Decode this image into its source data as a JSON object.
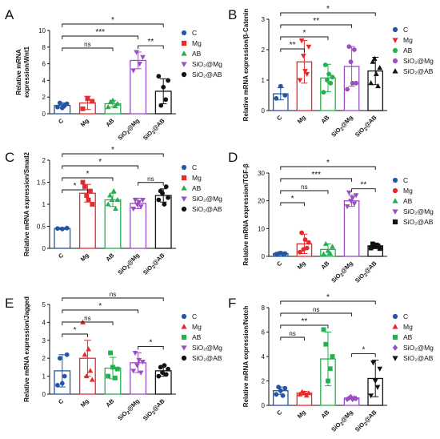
{
  "colors": {
    "C": "#2456a4",
    "Mg": "#e8282b",
    "AB": "#22b14c",
    "SiO2Mg": "#9b4fc0",
    "SiO2AB": "#111111",
    "text": "#111111"
  },
  "chart_data": [
    {
      "panel": "A",
      "type": "bar",
      "categories": [
        "C",
        "Mg",
        "AB",
        "SiO2@Mg",
        "SiO2@AB"
      ],
      "ylabel_lines": [
        "Relative mRNA",
        "expression/Wnt1"
      ],
      "ylim": [
        0,
        10
      ],
      "yticks": [
        0,
        2,
        4,
        6,
        8,
        10
      ],
      "values": [
        1.0,
        1.3,
        1.2,
        6.4,
        2.7
      ],
      "errors": [
        0.3,
        0.8,
        0.4,
        1.0,
        1.5
      ],
      "points": [
        [
          0.8,
          1.3,
          0.7,
          1.0,
          1.2
        ],
        [
          0.6,
          1.8,
          1.5
        ],
        [
          0.8,
          1.4,
          1.6,
          0.9,
          1.2
        ],
        [
          5.2,
          7.4,
          6.0,
          6.8
        ],
        [
          4.5,
          1.0,
          3.2,
          1.7,
          4.0
        ]
      ],
      "markers": [
        "circle",
        "square",
        "triangle",
        "tri-down",
        "circle"
      ],
      "legend": [
        {
          "key": "C",
          "label": "C",
          "marker": "circle"
        },
        {
          "key": "Mg",
          "label": "Mg",
          "marker": "square"
        },
        {
          "key": "AB",
          "label": "AB",
          "marker": "triangle"
        },
        {
          "key": "SiO2Mg",
          "label": "SiO₂@Mg",
          "marker": "tri-down"
        },
        {
          "key": "SiO2AB",
          "label": "SiO₂@AB",
          "marker": "circle"
        }
      ],
      "significance": [
        {
          "from": 0,
          "to": 4,
          "label": "*"
        },
        {
          "from": 0,
          "to": 3,
          "label": "***"
        },
        {
          "from": 0,
          "to": 2,
          "label": "ns"
        },
        {
          "from": 3,
          "to": 4,
          "label": "**"
        }
      ]
    },
    {
      "panel": "B",
      "type": "bar",
      "categories": [
        "C",
        "Mg",
        "AB",
        "SiO2@Mg",
        "SiO2@AB"
      ],
      "ylabel_lines": [
        "Relative mRNA expression/β-Catenin"
      ],
      "ylim": [
        0,
        3
      ],
      "yticks": [
        0,
        1,
        2,
        3
      ],
      "values": [
        0.55,
        1.6,
        1.07,
        1.45,
        1.3
      ],
      "errors": [
        0.2,
        0.7,
        0.45,
        0.65,
        0.45
      ],
      "points": [
        [
          0.4,
          0.8,
          0.5
        ],
        [
          1.0,
          2.3,
          1.8,
          1.3,
          1.2,
          2.1
        ],
        [
          0.6,
          1.5,
          1.0,
          1.2,
          0.9,
          1.1
        ],
        [
          0.7,
          2.1,
          1.6,
          0.9,
          2.0,
          0.9
        ],
        [
          0.9,
          1.6,
          1.7,
          1.2,
          0.8,
          1.4
        ]
      ],
      "markers": [
        "circle",
        "tri-down",
        "circle",
        "circle",
        "triangle"
      ],
      "legend": [
        {
          "key": "C",
          "label": "C",
          "marker": "circle"
        },
        {
          "key": "Mg",
          "label": "Mg",
          "marker": "tri-down"
        },
        {
          "key": "AB",
          "label": "AB",
          "marker": "circle"
        },
        {
          "key": "SiO2Mg",
          "label": "SiO₂@Mg",
          "marker": "circle"
        },
        {
          "key": "SiO2AB",
          "label": "SiO₂@AB",
          "marker": "triangle"
        }
      ],
      "significance": [
        {
          "from": 0,
          "to": 4,
          "label": "*"
        },
        {
          "from": 0,
          "to": 3,
          "label": "**"
        },
        {
          "from": 0,
          "to": 2,
          "label": "*"
        },
        {
          "from": 0,
          "to": 1,
          "label": "**"
        }
      ]
    },
    {
      "panel": "C",
      "type": "bar",
      "categories": [
        "C",
        "Mg",
        "AB",
        "SiO2@Mg",
        "SiO2@AB"
      ],
      "ylabel_lines": [
        "Relative mRNA expression/Smad2"
      ],
      "ylim": [
        0,
        2.0
      ],
      "yticks": [
        0,
        0.5,
        1.0,
        1.5,
        2.0
      ],
      "values": [
        0.45,
        1.25,
        1.1,
        1.02,
        1.2
      ],
      "errors": [
        0.02,
        0.2,
        0.15,
        0.12,
        0.15
      ],
      "points": [
        [
          0.45,
          0.44,
          0.46
        ],
        [
          1.5,
          1.4,
          1.2,
          1.1,
          1.3,
          1.0
        ],
        [
          1.0,
          1.2,
          1.1,
          1.3,
          0.9,
          1.1
        ],
        [
          0.9,
          1.1,
          1.0,
          1.05,
          0.95,
          1.1
        ],
        [
          1.1,
          1.3,
          1.25,
          1.0,
          1.4,
          1.15
        ]
      ],
      "markers": [
        "circle",
        "square",
        "triangle",
        "tri-down",
        "circle"
      ],
      "legend": [
        {
          "key": "C",
          "label": "C",
          "marker": "circle"
        },
        {
          "key": "Mg",
          "label": "Mg",
          "marker": "square"
        },
        {
          "key": "AB",
          "label": "AB",
          "marker": "triangle"
        },
        {
          "key": "SiO2Mg",
          "label": "SiO₂@Mg",
          "marker": "tri-down"
        },
        {
          "key": "SiO2AB",
          "label": "SiO₂@AB",
          "marker": "circle"
        }
      ],
      "significance": [
        {
          "from": 0,
          "to": 4,
          "label": "*"
        },
        {
          "from": 0,
          "to": 3,
          "label": "*"
        },
        {
          "from": 0,
          "to": 2,
          "label": "*"
        },
        {
          "from": 0,
          "to": 1,
          "label": "*"
        },
        {
          "from": 3,
          "to": 4,
          "label": "ns"
        }
      ]
    },
    {
      "panel": "D",
      "type": "bar",
      "categories": [
        "C",
        "Mg",
        "AB",
        "SiO2@Mg",
        "SiO2@AB"
      ],
      "ylabel_lines": [
        "Relative mRNA expression/TGF-β"
      ],
      "ylim": [
        0,
        30
      ],
      "yticks": [
        0,
        10,
        20,
        30
      ],
      "values": [
        1.0,
        4.5,
        2.5,
        20.0,
        3.8
      ],
      "errors": [
        0.4,
        3.5,
        2.0,
        2.0,
        1.0
      ],
      "points": [
        [
          0.8,
          1.0,
          1.2,
          0.9,
          1.0
        ],
        [
          1.5,
          8.5,
          2.5,
          6.0,
          3.0,
          5.0
        ],
        [
          0.8,
          4.5,
          2.0,
          1.0,
          3.5
        ],
        [
          18,
          23,
          20,
          21,
          19,
          22
        ],
        [
          3.0,
          4.5,
          3.5,
          4.0,
          3.8,
          2.8
        ]
      ],
      "markers": [
        "circle",
        "circle",
        "triangle",
        "tri-down",
        "square"
      ],
      "legend": [
        {
          "key": "C",
          "label": "C",
          "marker": "circle"
        },
        {
          "key": "Mg",
          "label": "Mg",
          "marker": "circle"
        },
        {
          "key": "AB",
          "label": "AB",
          "marker": "triangle"
        },
        {
          "key": "SiO2Mg",
          "label": "SiO₂@Mg",
          "marker": "tri-down"
        },
        {
          "key": "SiO2AB",
          "label": "SiO₂@AB",
          "marker": "square"
        }
      ],
      "significance": [
        {
          "from": 0,
          "to": 4,
          "label": "*"
        },
        {
          "from": 0,
          "to": 3,
          "label": "***"
        },
        {
          "from": 0,
          "to": 2,
          "label": "ns"
        },
        {
          "from": 0,
          "to": 1,
          "label": "*"
        },
        {
          "from": 3,
          "to": 4,
          "label": "**"
        }
      ]
    },
    {
      "panel": "E",
      "type": "bar",
      "categories": [
        "C",
        "Mg",
        "AB",
        "SiO2@Mg",
        "SiO2@AB"
      ],
      "ylabel_lines": [
        "Relative mRNA expression/Jagged"
      ],
      "ylim": [
        0,
        5
      ],
      "yticks": [
        0,
        1,
        2,
        3,
        4,
        5
      ],
      "values": [
        1.3,
        2.0,
        1.45,
        1.75,
        1.3
      ],
      "errors": [
        0.9,
        1.0,
        0.6,
        0.55,
        0.3
      ],
      "points": [
        [
          0.5,
          2.0,
          0.6,
          1.0,
          2.2
        ],
        [
          4.0,
          2.2,
          1.0,
          2.5,
          1.3,
          0.8
        ],
        [
          1.0,
          2.3,
          1.5,
          0.9,
          1.4
        ],
        [
          1.3,
          2.3,
          1.6,
          1.9,
          1.2,
          1.8
        ],
        [
          1.0,
          1.5,
          1.2,
          1.6,
          1.1,
          1.4
        ]
      ],
      "markers": [
        "circle",
        "triangle",
        "square",
        "tri-down",
        "circle"
      ],
      "legend": [
        {
          "key": "C",
          "label": "C",
          "marker": "circle"
        },
        {
          "key": "Mg",
          "label": "Mg",
          "marker": "triangle"
        },
        {
          "key": "AB",
          "label": "AB",
          "marker": "square"
        },
        {
          "key": "SiO2Mg",
          "label": "SiO₂@Mg",
          "marker": "tri-down"
        },
        {
          "key": "SiO2AB",
          "label": "SiO₂@AB",
          "marker": "circle"
        }
      ],
      "significance": [
        {
          "from": 0,
          "to": 4,
          "label": "ns"
        },
        {
          "from": 0,
          "to": 3,
          "label": "*"
        },
        {
          "from": 0,
          "to": 2,
          "label": "ns"
        },
        {
          "from": 0,
          "to": 1,
          "label": "*"
        },
        {
          "from": 3,
          "to": 4,
          "label": "*"
        }
      ]
    },
    {
      "panel": "F",
      "type": "bar",
      "categories": [
        "C",
        "Mg",
        "AB",
        "SiO2@Mg",
        "SiO2@AB"
      ],
      "ylabel_lines": [
        "Relative mRNA expression/Notch"
      ],
      "ylim": [
        0,
        8
      ],
      "yticks": [
        0,
        2,
        4,
        6,
        8
      ],
      "values": [
        1.2,
        1.0,
        3.8,
        0.6,
        2.2
      ],
      "errors": [
        0.3,
        0.15,
        2.2,
        0.1,
        1.5
      ],
      "points": [
        [
          0.9,
          1.5,
          1.2,
          0.8,
          1.4
        ],
        [
          0.9,
          1.1,
          1.0,
          0.8,
          1.0
        ],
        [
          6.2,
          5.0,
          2.0,
          3.0,
          4.0
        ],
        [
          0.5,
          0.6,
          0.7,
          0.5,
          0.6,
          0.55
        ],
        [
          0.8,
          3.5,
          2.0,
          1.5,
          3.0
        ]
      ],
      "markers": [
        "circle",
        "triangle",
        "square",
        "diamond",
        "tri-down"
      ],
      "legend": [
        {
          "key": "C",
          "label": "C",
          "marker": "circle"
        },
        {
          "key": "Mg",
          "label": "Mg",
          "marker": "triangle"
        },
        {
          "key": "AB",
          "label": "AB",
          "marker": "square"
        },
        {
          "key": "SiO2Mg",
          "label": "SiO₂@Mg",
          "marker": "diamond"
        },
        {
          "key": "SiO2AB",
          "label": "SiO₂@AB",
          "marker": "tri-down"
        }
      ],
      "significance": [
        {
          "from": 0,
          "to": 4,
          "label": "*"
        },
        {
          "from": 0,
          "to": 3,
          "label": "ns"
        },
        {
          "from": 0,
          "to": 2,
          "label": "**"
        },
        {
          "from": 0,
          "to": 1,
          "label": "ns"
        },
        {
          "from": 3,
          "to": 4,
          "label": "*"
        }
      ]
    }
  ]
}
